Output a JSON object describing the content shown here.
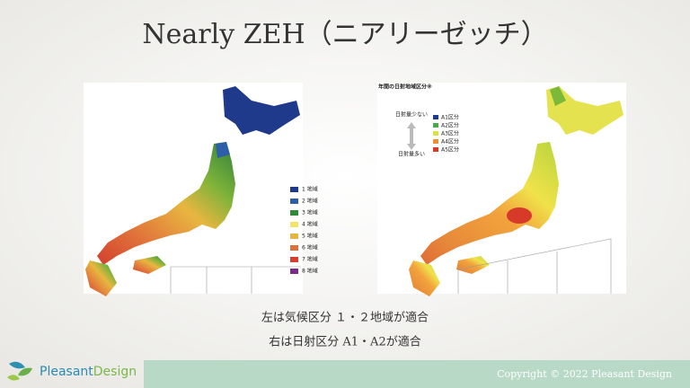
{
  "title": "Nearly ZEH（ニアリーゼッチ）",
  "left_map": {
    "legend": [
      "1 地域",
      "2 地域",
      "3 地域",
      "4 地域",
      "5 地域",
      "6 地域",
      "7 地域",
      "8 地域"
    ]
  },
  "right_map": {
    "title": "年間の日射地域区分※",
    "legend": [
      "A1区分",
      "A2区分",
      "A3区分",
      "A4区分",
      "A5区分"
    ],
    "arrow_top": "日射量少ない",
    "arrow_bottom": "日射量多い"
  },
  "captions": [
    "左は気候区分 １・２地域が適合",
    "右は日射区分 A1・A2が適合"
  ],
  "footer": {
    "logo": [
      "Pleasant",
      "Design"
    ],
    "copyright": "Copyright © 2022 Pleasant Design"
  }
}
